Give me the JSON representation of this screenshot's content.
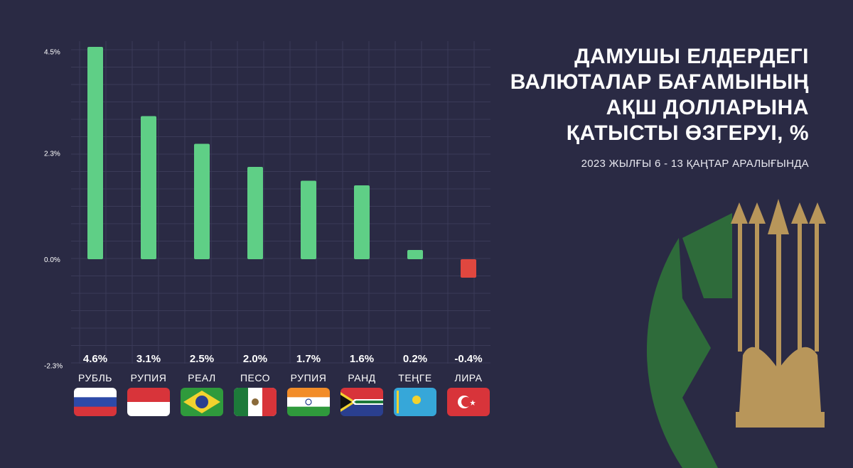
{
  "title_lines": [
    "ДАМУШЫ ЕЛДЕРДЕГІ",
    "ВАЛЮТАЛАР БАҒАМЫНЫҢ",
    "АҚШ ДОЛЛАРЫНА",
    "ҚАТЫСТЫ ӨЗГЕРУІ, %"
  ],
  "subtitle": "2023 ЖЫЛҒЫ 6 - 13 ҚАҢТАР АРАЛЫҒЫНДА",
  "colors": {
    "positive": "#5fcf86",
    "negative": "#e0473f",
    "background": "#2a2a44",
    "logo_green": "#2e6b3a",
    "logo_gold": "#b8965a"
  },
  "chart_data": {
    "type": "bar",
    "categories": [
      "РУБЛЬ",
      "РУПИЯ",
      "РЕАЛ",
      "ПЕСО",
      "РУПИЯ",
      "РАНД",
      "ТЕҢГЕ",
      "ЛИРА"
    ],
    "values": [
      4.6,
      3.1,
      2.5,
      2.0,
      1.7,
      1.6,
      0.2,
      -0.4
    ],
    "value_labels": [
      "4.6%",
      "3.1%",
      "2.5%",
      "2.0%",
      "1.7%",
      "1.6%",
      "0.2%",
      "-0.4%"
    ],
    "flags": [
      "russia-flag",
      "indonesia-flag",
      "brazil-flag",
      "mexico-flag",
      "india-flag",
      "south-africa-flag",
      "kazakhstan-flag",
      "turkey-flag"
    ],
    "yticks": [
      4.5,
      2.3,
      0.0,
      -2.3
    ],
    "ytick_labels": [
      "4.5%",
      "2.3%",
      "0.0%",
      "-2.3%"
    ],
    "ylim": [
      -2.3,
      4.6
    ],
    "grid": true,
    "xlabel": "",
    "ylabel": ""
  }
}
